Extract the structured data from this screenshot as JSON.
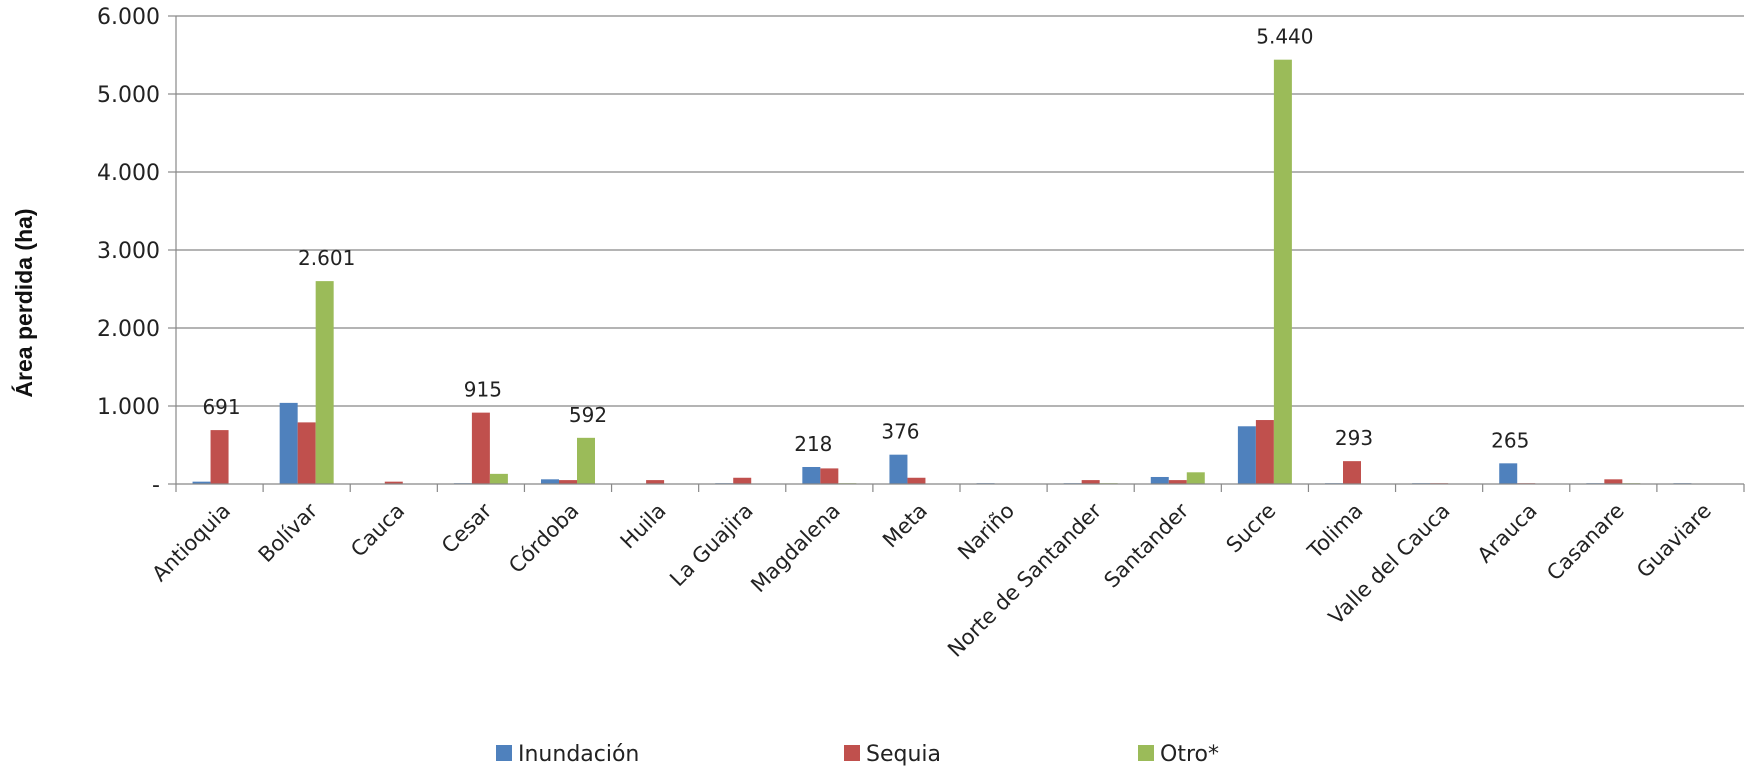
{
  "chart_data": {
    "type": "bar",
    "title": "",
    "xlabel": "",
    "ylabel": "Área perdida (ha)",
    "ylim": [
      0,
      6000
    ],
    "yticks": [
      {
        "value": 0,
        "label": "-"
      },
      {
        "value": 1000,
        "label": "1.000"
      },
      {
        "value": 2000,
        "label": "2.000"
      },
      {
        "value": 3000,
        "label": "3.000"
      },
      {
        "value": 4000,
        "label": "4.000"
      },
      {
        "value": 5000,
        "label": "5.000"
      },
      {
        "value": 6000,
        "label": "6.000"
      }
    ],
    "grid": true,
    "legend_position": "bottom",
    "categories": [
      "Antioquia",
      "Bolívar",
      "Cauca",
      "Cesar",
      "Córdoba",
      "Huila",
      "La Guajira",
      "Magdalena",
      "Meta",
      "Nariño",
      "Norte de Santander",
      "Santander",
      "Sucre",
      "Tolima",
      "Valle del Cauca",
      "Arauca",
      "Casanare",
      "Guaviare"
    ],
    "series": [
      {
        "name": "Inundación",
        "color": "#4F81BD",
        "values": [
          30,
          1040,
          0,
          10,
          60,
          0,
          10,
          218,
          376,
          10,
          10,
          90,
          740,
          10,
          10,
          265,
          10,
          10
        ]
      },
      {
        "name": "Sequia",
        "color": "#C0504D",
        "values": [
          691,
          790,
          30,
          915,
          50,
          50,
          80,
          200,
          80,
          0,
          50,
          50,
          820,
          293,
          10,
          10,
          60,
          0
        ]
      },
      {
        "name": "Otro*",
        "color": "#9BBB59",
        "values": [
          0,
          2601,
          0,
          130,
          592,
          0,
          0,
          10,
          0,
          0,
          10,
          150,
          5440,
          0,
          0,
          0,
          10,
          0
        ]
      }
    ],
    "data_labels": [
      {
        "category": "Antioquia",
        "series": "Sequia",
        "text": "691"
      },
      {
        "category": "Bolívar",
        "series": "Otro*",
        "text": "2.601"
      },
      {
        "category": "Cesar",
        "series": "Sequia",
        "text": "915"
      },
      {
        "category": "Córdoba",
        "series": "Otro*",
        "text": "592"
      },
      {
        "category": "Magdalena",
        "series": "Inundación",
        "text": "218"
      },
      {
        "category": "Meta",
        "series": "Inundación",
        "text": "376"
      },
      {
        "category": "Sucre",
        "series": "Otro*",
        "text": "5.440"
      },
      {
        "category": "Tolima",
        "series": "Sequia",
        "text": "293"
      },
      {
        "category": "Arauca",
        "series": "Inundación",
        "text": "265"
      }
    ]
  }
}
